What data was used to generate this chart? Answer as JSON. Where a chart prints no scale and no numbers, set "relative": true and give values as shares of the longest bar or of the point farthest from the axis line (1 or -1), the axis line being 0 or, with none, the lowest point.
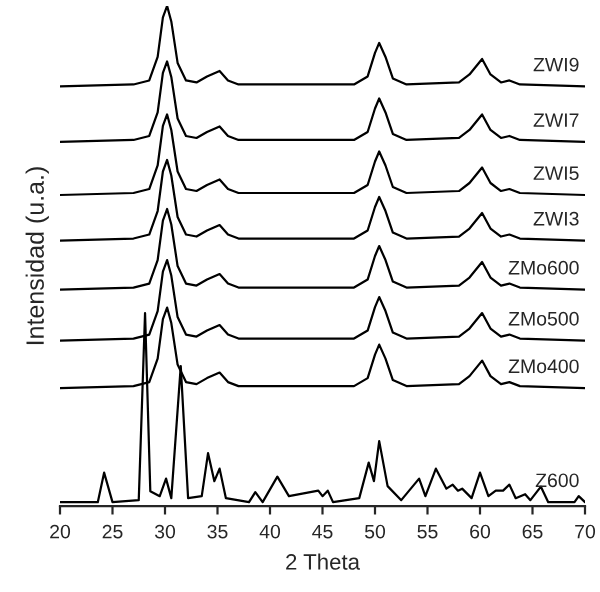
{
  "chart_data": {
    "type": "line",
    "relative": true,
    "xlabel": "2 Theta",
    "ylabel": "Intensidad (u.a.)",
    "tick_labels": "x",
    "legend": false,
    "grid": false,
    "marker": "none",
    "line_style": "solid",
    "xlim": [
      20,
      70
    ],
    "xticks": [
      20,
      25,
      30,
      35,
      40,
      45,
      50,
      55,
      60,
      65,
      70
    ],
    "x": [
      20,
      27,
      28.5,
      29.3,
      29.8,
      30.2,
      30.6,
      31.2,
      32,
      33,
      34,
      35.2,
      36,
      37,
      43,
      48,
      49.3,
      50,
      50.4,
      51,
      51.7,
      53,
      58,
      59,
      60.2,
      61,
      62,
      62.8,
      63.8,
      70
    ],
    "series": [
      {
        "name": "ZWI9",
        "color": "#000000",
        "values": [
          0.839,
          0.843,
          0.851,
          0.898,
          0.977,
          1.0,
          0.969,
          0.886,
          0.851,
          0.847,
          0.859,
          0.87,
          0.851,
          0.843,
          0.843,
          0.843,
          0.859,
          0.906,
          0.926,
          0.898,
          0.855,
          0.843,
          0.847,
          0.863,
          0.894,
          0.863,
          0.847,
          0.851,
          0.843,
          0.839
        ]
      },
      {
        "name": "ZWI7",
        "color": "#000000",
        "values": [
          0.728,
          0.732,
          0.74,
          0.787,
          0.866,
          0.889,
          0.858,
          0.775,
          0.74,
          0.736,
          0.748,
          0.759,
          0.74,
          0.732,
          0.732,
          0.732,
          0.748,
          0.795,
          0.815,
          0.787,
          0.744,
          0.732,
          0.736,
          0.752,
          0.783,
          0.752,
          0.736,
          0.74,
          0.732,
          0.728
        ]
      },
      {
        "name": "ZWI5",
        "color": "#000000",
        "values": [
          0.622,
          0.626,
          0.634,
          0.681,
          0.76,
          0.783,
          0.752,
          0.669,
          0.634,
          0.63,
          0.642,
          0.653,
          0.634,
          0.626,
          0.626,
          0.626,
          0.642,
          0.689,
          0.709,
          0.681,
          0.638,
          0.626,
          0.63,
          0.646,
          0.677,
          0.646,
          0.63,
          0.634,
          0.626,
          0.622
        ]
      },
      {
        "name": "ZWI3",
        "color": "#000000",
        "values": [
          0.531,
          0.535,
          0.543,
          0.59,
          0.669,
          0.692,
          0.661,
          0.578,
          0.543,
          0.539,
          0.551,
          0.562,
          0.543,
          0.535,
          0.535,
          0.535,
          0.551,
          0.598,
          0.618,
          0.59,
          0.547,
          0.535,
          0.539,
          0.555,
          0.586,
          0.555,
          0.539,
          0.543,
          0.535,
          0.531
        ]
      },
      {
        "name": "ZMo600",
        "color": "#000000",
        "values": [
          0.433,
          0.437,
          0.445,
          0.492,
          0.571,
          0.594,
          0.563,
          0.48,
          0.445,
          0.441,
          0.453,
          0.464,
          0.445,
          0.437,
          0.437,
          0.437,
          0.453,
          0.5,
          0.52,
          0.492,
          0.449,
          0.437,
          0.441,
          0.457,
          0.488,
          0.457,
          0.441,
          0.445,
          0.437,
          0.433
        ]
      },
      {
        "name": "ZMo500",
        "color": "#000000",
        "values": [
          0.331,
          0.335,
          0.343,
          0.39,
          0.469,
          0.492,
          0.461,
          0.378,
          0.343,
          0.339,
          0.351,
          0.362,
          0.343,
          0.335,
          0.335,
          0.335,
          0.351,
          0.398,
          0.418,
          0.39,
          0.347,
          0.335,
          0.339,
          0.355,
          0.386,
          0.355,
          0.339,
          0.343,
          0.335,
          0.331
        ]
      },
      {
        "name": "ZMo400",
        "color": "#000000",
        "values": [
          0.236,
          0.24,
          0.248,
          0.295,
          0.374,
          0.397,
          0.366,
          0.283,
          0.248,
          0.244,
          0.256,
          0.267,
          0.248,
          0.24,
          0.24,
          0.24,
          0.256,
          0.303,
          0.323,
          0.295,
          0.252,
          0.24,
          0.244,
          0.26,
          0.291,
          0.26,
          0.244,
          0.248,
          0.24,
          0.236
        ]
      },
      {
        "name": "Z600",
        "color": "#000000",
        "x": [
          20,
          23.6,
          24.2,
          25,
          27.5,
          28.1,
          28.6,
          29.5,
          30.1,
          30.6,
          31.5,
          32.2,
          33.5,
          34.1,
          34.7,
          35.2,
          35.8,
          38,
          38.6,
          39.3,
          40.7,
          41.8,
          44.6,
          45,
          45.5,
          46,
          48.5,
          49.4,
          49.9,
          50.4,
          51.2,
          52.5,
          54.2,
          54.8,
          55.8,
          56.8,
          57.4,
          57.9,
          58.3,
          59.2,
          60,
          60.8,
          61.5,
          62.2,
          62.8,
          63.4,
          64.3,
          64.8,
          65.8,
          66.5,
          69,
          69.4,
          70
        ],
        "values": [
          0.008,
          0.008,
          0.067,
          0.008,
          0.012,
          0.386,
          0.03,
          0.02,
          0.055,
          0.016,
          0.28,
          0.016,
          0.02,
          0.106,
          0.05,
          0.075,
          0.016,
          0.008,
          0.028,
          0.008,
          0.059,
          0.02,
          0.031,
          0.02,
          0.031,
          0.008,
          0.016,
          0.087,
          0.05,
          0.13,
          0.04,
          0.012,
          0.055,
          0.02,
          0.075,
          0.035,
          0.043,
          0.031,
          0.035,
          0.016,
          0.067,
          0.02,
          0.031,
          0.031,
          0.043,
          0.016,
          0.024,
          0.012,
          0.039,
          0.008,
          0.008,
          0.02,
          0.008
        ]
      }
    ]
  }
}
